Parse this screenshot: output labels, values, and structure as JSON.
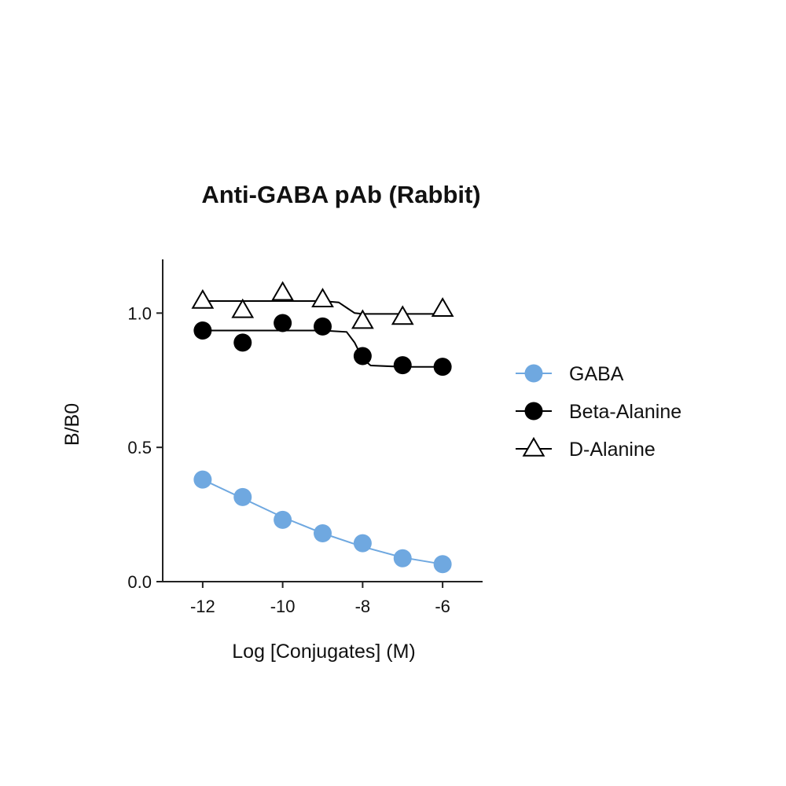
{
  "chart_data": {
    "type": "scatter",
    "title": "Anti-GABA pAb (Rabbit)",
    "xlabel": "Log [Conjugates] (M)",
    "ylabel": "B/B0",
    "xlim": [
      -13,
      -5
    ],
    "ylim": [
      0,
      1.2
    ],
    "xticks": [
      -12,
      -10,
      -8,
      -6
    ],
    "xtick_labels": [
      "-12",
      "-10",
      "-8",
      "-6"
    ],
    "yticks": [
      0,
      0.5,
      1.0
    ],
    "ytick_labels": [
      "0.0",
      "0.5",
      "1.0"
    ],
    "grid": false,
    "legend_position": "right",
    "series": [
      {
        "name": "GABA",
        "marker": "circle",
        "color": "#6fa8e0",
        "x": [
          -12,
          -11,
          -10,
          -9,
          -8,
          -7,
          -6
        ],
        "y": [
          0.38,
          0.315,
          0.23,
          0.18,
          0.143,
          0.087,
          0.065
        ],
        "fit_x": [
          -12,
          -11,
          -10,
          -9,
          -8,
          -7,
          -6
        ],
        "fit_y": [
          0.38,
          0.31,
          0.24,
          0.18,
          0.13,
          0.09,
          0.065
        ]
      },
      {
        "name": "Beta-Alanine",
        "marker": "circle",
        "color": "#000000",
        "x": [
          -12,
          -11,
          -10,
          -9,
          -8,
          -7,
          -6
        ],
        "y": [
          0.935,
          0.89,
          0.963,
          0.95,
          0.84,
          0.806,
          0.8
        ],
        "fit_x": [
          -12,
          -11,
          -10,
          -9,
          -8.4,
          -8.2,
          -8.0,
          -7.8,
          -7,
          -6
        ],
        "fit_y": [
          0.935,
          0.935,
          0.935,
          0.935,
          0.93,
          0.89,
          0.83,
          0.805,
          0.8,
          0.8
        ]
      },
      {
        "name": "D-Alanine",
        "marker": "triangle-open",
        "color": "#000000",
        "x": [
          -12,
          -11,
          -10,
          -9,
          -8,
          -7,
          -6
        ],
        "y": [
          1.045,
          1.01,
          1.075,
          1.05,
          0.97,
          0.985,
          1.015
        ],
        "fit_x": [
          -12,
          -11,
          -10,
          -9,
          -8.6,
          -8.4,
          -8.2,
          -8,
          -7,
          -6
        ],
        "fit_y": [
          1.045,
          1.045,
          1.045,
          1.045,
          1.04,
          1.02,
          1.0,
          0.997,
          0.997,
          0.997
        ]
      }
    ]
  }
}
